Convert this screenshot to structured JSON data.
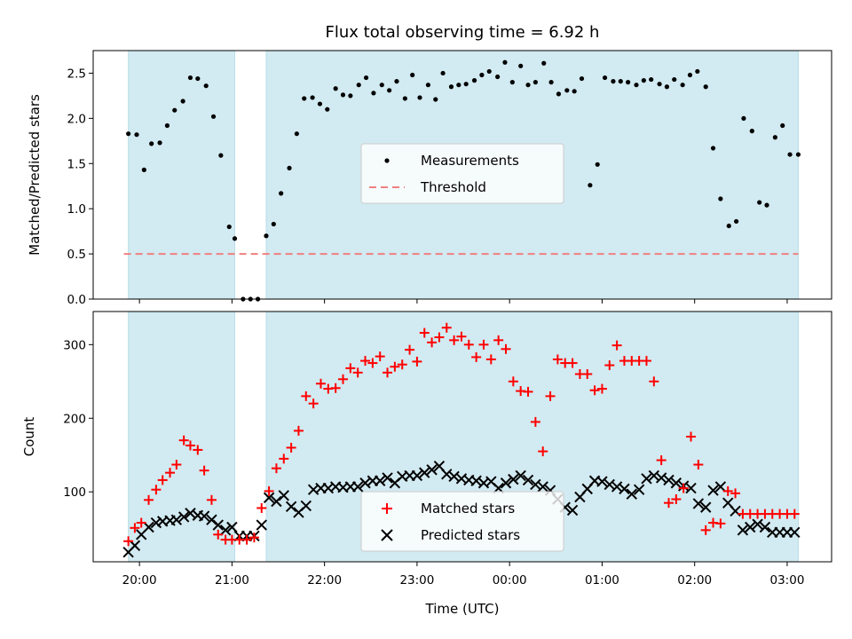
{
  "chart_data": [
    {
      "type": "scatter",
      "title": "Flux total observing time = 6.92 h",
      "xlabel": "",
      "ylabel": "Matched/Predicted stars",
      "ylim": [
        0,
        2.75
      ],
      "yticks": [
        "0.0",
        "0.5",
        "1.0",
        "1.5",
        "2.0",
        "2.5"
      ],
      "xlim_hours": [
        19.5,
        27.48
      ],
      "legend": {
        "placement": "center",
        "entries": [
          "Measurements",
          "Threshold"
        ]
      },
      "threshold": 0.5,
      "shaded_intervals": [
        [
          19.88,
          21.03
        ],
        [
          21.37,
          27.12
        ]
      ],
      "colors": {
        "measurements": "#000000",
        "threshold": "#f08080",
        "shade": "#add8e6"
      },
      "series": [
        {
          "name": "Measurements",
          "x": [
            19.88,
            19.97,
            20.05,
            20.13,
            20.22,
            20.3,
            20.38,
            20.47,
            20.55,
            20.63,
            20.72,
            20.8,
            20.88,
            20.97,
            21.03,
            21.12,
            21.2,
            21.28,
            21.37,
            21.45,
            21.53,
            21.62,
            21.7,
            21.78,
            21.87,
            21.95,
            22.03,
            22.12,
            22.2,
            22.28,
            22.37,
            22.45,
            22.53,
            22.62,
            22.7,
            22.78,
            22.87,
            22.95,
            23.03,
            23.12,
            23.2,
            23.28,
            23.37,
            23.45,
            23.53,
            23.62,
            23.7,
            23.78,
            23.87,
            23.95,
            24.03,
            24.12,
            24.2,
            24.28,
            24.37,
            24.45,
            24.53,
            24.62,
            24.7,
            24.78,
            24.87,
            24.95,
            25.03,
            25.12,
            25.2,
            25.28,
            25.37,
            25.45,
            25.53,
            25.62,
            25.7,
            25.78,
            25.87,
            25.95,
            26.03,
            26.12,
            26.2,
            26.28,
            26.37,
            26.45,
            26.53,
            26.62,
            26.7,
            26.78,
            26.87,
            26.95,
            27.03,
            27.12
          ],
          "y": [
            1.83,
            1.82,
            1.43,
            1.72,
            1.73,
            1.92,
            2.09,
            2.19,
            2.45,
            2.44,
            2.36,
            2.02,
            1.59,
            0.8,
            0.67,
            0.0,
            0.0,
            0.0,
            0.7,
            0.83,
            1.17,
            1.45,
            1.83,
            2.22,
            2.23,
            2.16,
            2.1,
            2.33,
            2.26,
            2.25,
            2.37,
            2.45,
            2.28,
            2.37,
            2.31,
            2.41,
            2.22,
            2.48,
            2.23,
            2.37,
            2.21,
            2.5,
            2.35,
            2.37,
            2.38,
            2.42,
            2.48,
            2.52,
            2.46,
            2.62,
            2.4,
            2.58,
            2.37,
            2.4,
            2.61,
            2.4,
            2.27,
            2.31,
            2.3,
            2.44,
            1.26,
            1.49,
            2.45,
            2.41,
            2.41,
            2.4,
            2.37,
            2.42,
            2.43,
            2.38,
            2.35,
            2.43,
            2.37,
            2.48,
            2.52,
            2.35,
            1.67,
            1.11,
            0.81,
            0.86,
            2.0,
            1.86,
            1.07,
            1.04,
            1.79,
            1.92,
            1.6,
            1.6
          ]
        }
      ]
    },
    {
      "type": "scatter",
      "title": "",
      "xlabel": "Time (UTC)",
      "ylabel": "Count",
      "ylim": [
        5,
        345
      ],
      "yticks": [
        "100",
        "200",
        "300"
      ],
      "xticks": [
        "20:00",
        "21:00",
        "22:00",
        "23:00",
        "00:00",
        "01:00",
        "02:00",
        "03:00"
      ],
      "xtick_hours": [
        20,
        21,
        22,
        23,
        24,
        25,
        26,
        27
      ],
      "xlim_hours": [
        19.5,
        27.48
      ],
      "legend": {
        "placement": "lower center",
        "entries": [
          "Matched stars",
          "Predicted stars"
        ]
      },
      "shaded_intervals": [
        [
          19.88,
          21.03
        ],
        [
          21.37,
          27.12
        ]
      ],
      "colors": {
        "matched": "#ff0000",
        "predicted": "#000000",
        "shade": "#add8e6"
      },
      "series": [
        {
          "name": "Matched stars",
          "x": [
            19.88,
            19.95,
            20.02,
            20.1,
            20.18,
            20.25,
            20.33,
            20.4,
            20.48,
            20.55,
            20.63,
            20.7,
            20.78,
            20.85,
            20.93,
            21.0,
            21.08,
            21.16,
            21.24,
            21.32,
            21.4,
            21.48,
            21.56,
            21.64,
            21.72,
            21.8,
            21.88,
            21.96,
            22.04,
            22.12,
            22.2,
            22.28,
            22.36,
            22.44,
            22.52,
            22.6,
            22.68,
            22.76,
            22.84,
            22.92,
            23.0,
            23.08,
            23.16,
            23.24,
            23.32,
            23.4,
            23.48,
            23.56,
            23.64,
            23.72,
            23.8,
            23.88,
            23.96,
            24.04,
            24.12,
            24.2,
            24.28,
            24.36,
            24.44,
            24.52,
            24.6,
            24.68,
            24.76,
            24.84,
            24.92,
            25.0,
            25.08,
            25.16,
            25.24,
            25.32,
            25.4,
            25.48,
            25.56,
            25.64,
            25.72,
            25.8,
            25.88,
            25.96,
            26.04,
            26.12,
            26.2,
            26.28,
            26.36,
            26.44,
            26.52,
            26.6,
            26.68,
            26.76,
            26.84,
            26.92,
            27.0,
            27.08
          ],
          "y": [
            33,
            51,
            58,
            89,
            103,
            116,
            126,
            137,
            170,
            163,
            157,
            129,
            89,
            42,
            35,
            35,
            35,
            35,
            38,
            78,
            101,
            132,
            145,
            160,
            183,
            230,
            220,
            247,
            240,
            241,
            253,
            268,
            262,
            278,
            275,
            284,
            262,
            270,
            273,
            293,
            277,
            316,
            303,
            310,
            323,
            306,
            311,
            300,
            283,
            300,
            280,
            306,
            294,
            250,
            237,
            236,
            195,
            155,
            230,
            280,
            275,
            275,
            260,
            260,
            238,
            240,
            272,
            299,
            278,
            278,
            278,
            278,
            250,
            143,
            85,
            90,
            105,
            175,
            137,
            48,
            58,
            57,
            101,
            98,
            70,
            70,
            70,
            70,
            70,
            70,
            70,
            70
          ]
        },
        {
          "name": "Predicted stars",
          "x": [
            19.88,
            19.95,
            20.02,
            20.1,
            20.18,
            20.25,
            20.33,
            20.4,
            20.48,
            20.55,
            20.63,
            20.7,
            20.78,
            20.85,
            20.93,
            21.0,
            21.08,
            21.16,
            21.24,
            21.32,
            21.4,
            21.48,
            21.56,
            21.64,
            21.72,
            21.8,
            21.88,
            21.96,
            22.04,
            22.12,
            22.2,
            22.28,
            22.36,
            22.44,
            22.52,
            22.6,
            22.68,
            22.76,
            22.84,
            22.92,
            23.0,
            23.08,
            23.16,
            23.24,
            23.32,
            23.4,
            23.48,
            23.56,
            23.64,
            23.72,
            23.8,
            23.88,
            23.96,
            24.04,
            24.12,
            24.2,
            24.28,
            24.36,
            24.44,
            24.52,
            24.6,
            24.68,
            24.76,
            24.84,
            24.92,
            25.0,
            25.08,
            25.16,
            25.24,
            25.32,
            25.4,
            25.48,
            25.56,
            25.64,
            25.72,
            25.8,
            25.88,
            25.96,
            26.04,
            26.12,
            26.2,
            26.28,
            26.36,
            26.44,
            26.52,
            26.6,
            26.68,
            26.76,
            26.84,
            26.92,
            27.0,
            27.08
          ],
          "y": [
            18,
            27,
            42,
            52,
            58,
            60,
            61,
            62,
            66,
            71,
            68,
            67,
            62,
            55,
            48,
            52,
            40,
            40,
            40,
            55,
            92,
            87,
            95,
            80,
            72,
            81,
            103,
            105,
            105,
            107,
            106,
            107,
            107,
            112,
            115,
            115,
            119,
            112,
            121,
            122,
            122,
            126,
            130,
            135,
            124,
            121,
            118,
            116,
            115,
            112,
            114,
            105,
            112,
            117,
            122,
            116,
            110,
            107,
            102,
            90,
            79,
            75,
            93,
            104,
            115,
            114,
            110,
            107,
            104,
            97,
            103,
            118,
            122,
            119,
            116,
            112,
            108,
            105,
            84,
            79,
            102,
            107,
            85,
            74,
            48,
            52,
            56,
            52,
            45,
            45,
            45,
            45
          ]
        }
      ]
    }
  ]
}
